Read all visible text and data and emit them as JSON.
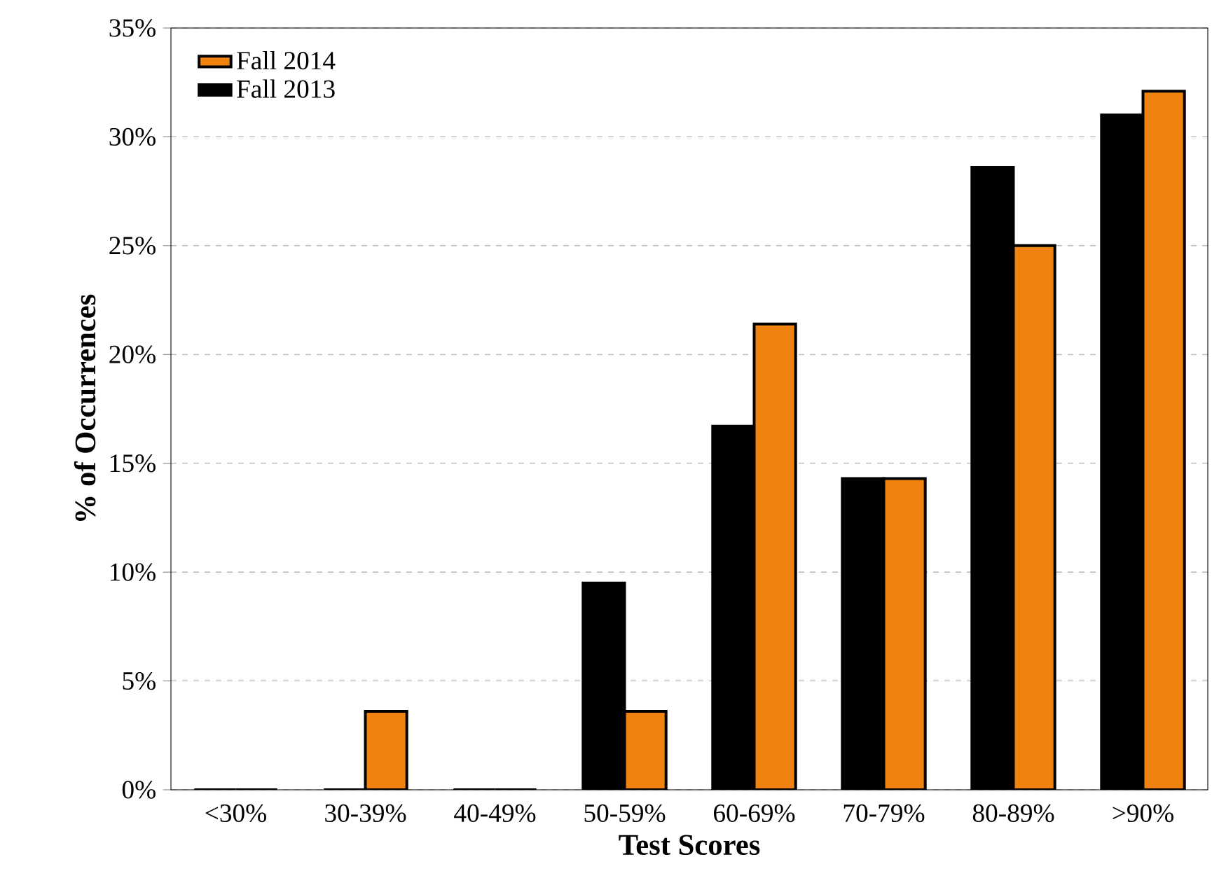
{
  "chart_data": {
    "type": "bar",
    "xlabel": "Test Scores",
    "ylabel": "% of Occurrences",
    "categories": [
      "<30%",
      "30-39%",
      "40-49%",
      "50-59%",
      "60-69%",
      "70-79%",
      "80-89%",
      ">90%"
    ],
    "series": [
      {
        "name": "Fall 2013",
        "color": "#000000",
        "values": [
          0,
          0,
          0,
          9.5,
          16.7,
          14.3,
          28.6,
          31.0
        ]
      },
      {
        "name": "Fall 2014",
        "color": "#f0820f",
        "values": [
          0,
          3.6,
          0,
          3.6,
          21.4,
          14.3,
          25.0,
          32.1
        ]
      }
    ],
    "ylim": [
      0,
      35
    ],
    "yticks": [
      {
        "value": 0,
        "label": "0%"
      },
      {
        "value": 5,
        "label": "5%"
      },
      {
        "value": 10,
        "label": "10%"
      },
      {
        "value": 15,
        "label": "15%"
      },
      {
        "value": 20,
        "label": "20%"
      },
      {
        "value": 25,
        "label": "25%"
      },
      {
        "value": 30,
        "label": "30%"
      },
      {
        "value": 35,
        "label": "35%"
      }
    ],
    "grid": "y",
    "legend": "top left"
  }
}
